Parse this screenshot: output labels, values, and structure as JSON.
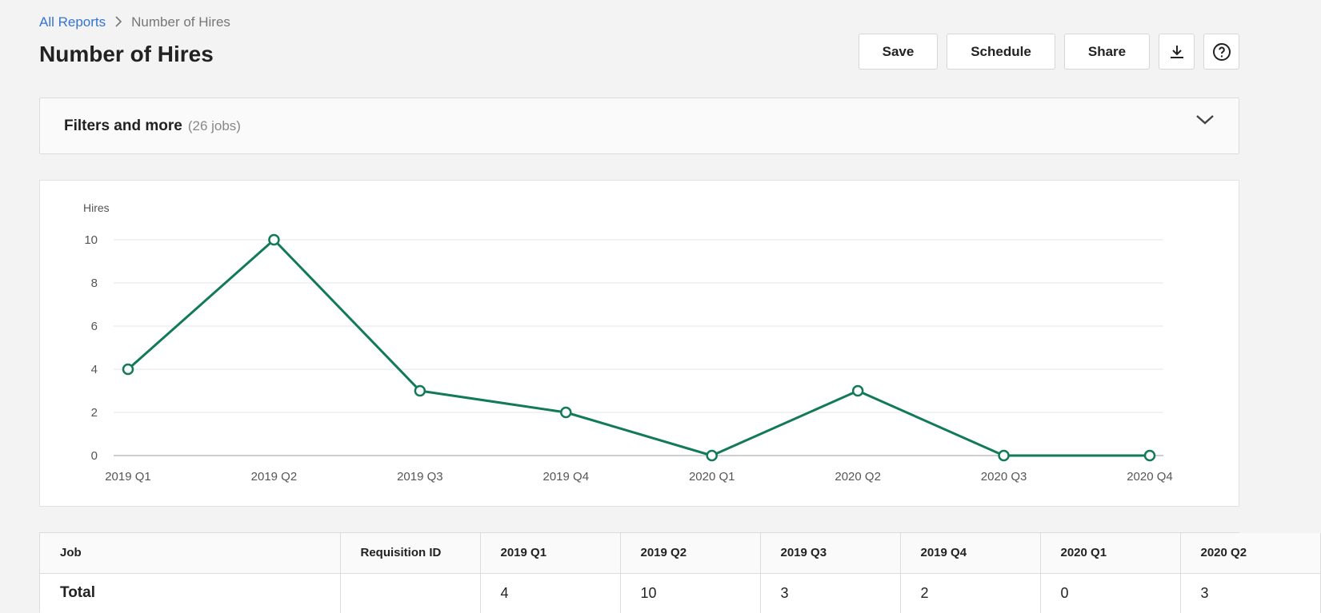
{
  "breadcrumb": {
    "parent": "All Reports",
    "current": "Number of Hires"
  },
  "page": {
    "title": "Number of Hires"
  },
  "actions": {
    "save": "Save",
    "schedule": "Schedule",
    "share": "Share",
    "download_icon": "download-icon",
    "help_icon": "help-icon"
  },
  "filters": {
    "title": "Filters and more",
    "count": "(26 jobs)",
    "toggle_icon": "chevron-down-icon"
  },
  "chart_data": {
    "type": "line",
    "title": "",
    "ylabel": "Hires",
    "xlabel": "",
    "categories": [
      "2019 Q1",
      "2019 Q2",
      "2019 Q3",
      "2019 Q4",
      "2020 Q1",
      "2020 Q2",
      "2020 Q3",
      "2020 Q4"
    ],
    "series": [
      {
        "values": [
          4,
          10,
          3,
          2,
          0,
          3,
          0,
          0
        ],
        "color": "#127a57"
      }
    ],
    "ylim": [
      0,
      10
    ],
    "yticks": [
      0,
      2,
      4,
      6,
      8,
      10
    ],
    "grid": true,
    "legend": "none"
  },
  "table": {
    "columns": [
      "Job",
      "Requisition ID",
      "2019 Q1",
      "2019 Q2",
      "2019 Q3",
      "2019 Q4",
      "2020 Q1",
      "2020 Q2"
    ],
    "rows": [
      {
        "cells": [
          "Total",
          "",
          "4",
          "10",
          "3",
          "2",
          "0",
          "3"
        ]
      }
    ]
  },
  "colors": {
    "accent": "#127a57",
    "link": "#3574d4"
  }
}
